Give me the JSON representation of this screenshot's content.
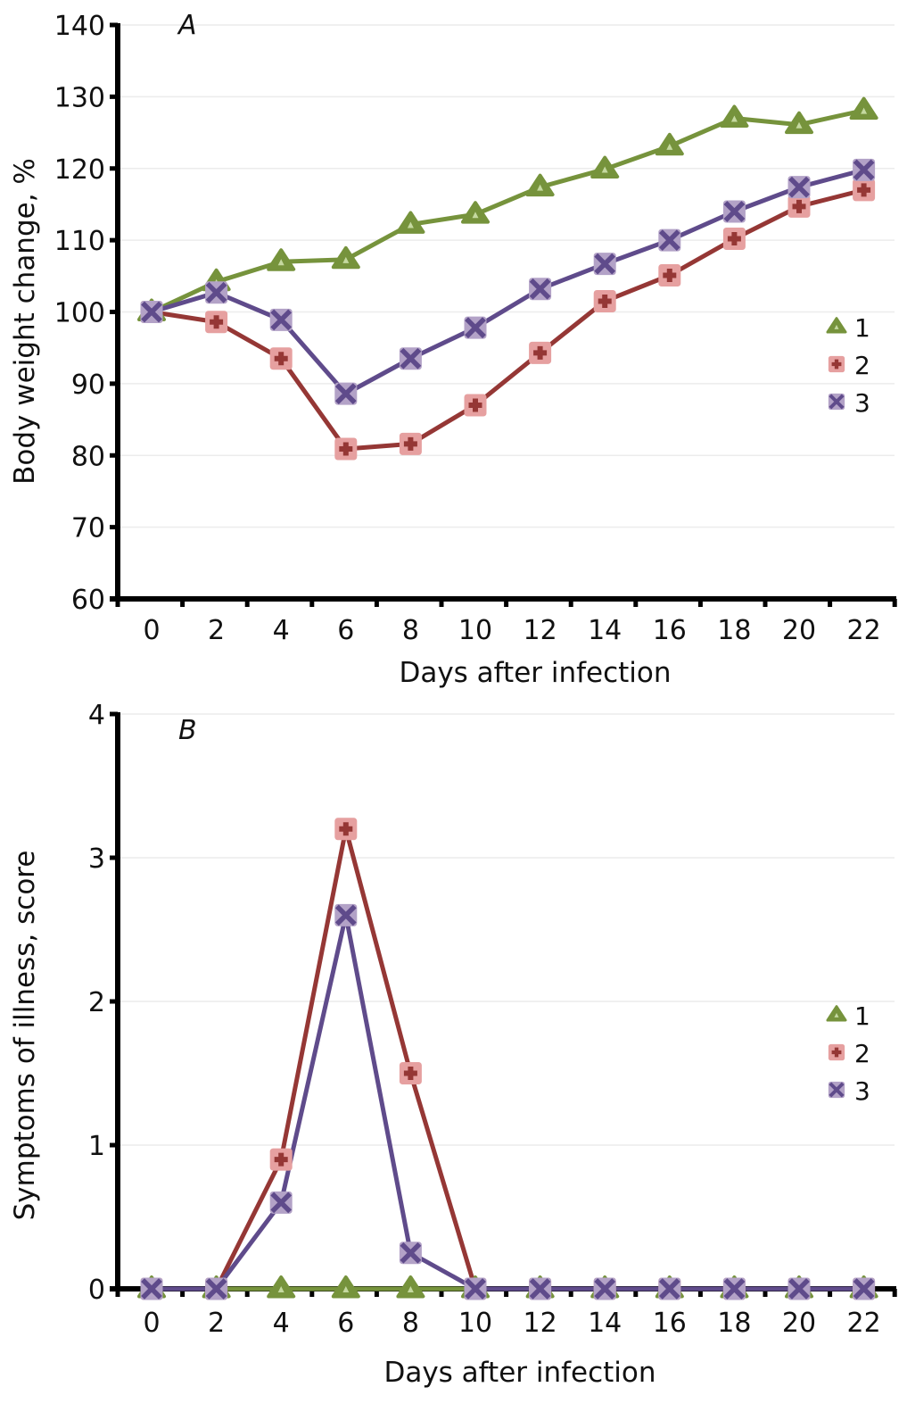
{
  "chart_data": [
    {
      "type": "line",
      "panel_label": "A",
      "title": "",
      "xlabel": "Days after infection",
      "ylabel": "Body weight change, %",
      "categories": [
        "0",
        "2",
        "4",
        "6",
        "8",
        "10",
        "12",
        "14",
        "16",
        "18",
        "20",
        "22"
      ],
      "x": [
        0,
        2,
        4,
        6,
        8,
        10,
        12,
        14,
        16,
        18,
        20,
        22
      ],
      "ylim": [
        60,
        140
      ],
      "yticks": [
        60,
        70,
        80,
        90,
        100,
        110,
        120,
        130,
        140
      ],
      "grid": true,
      "legend_position": "right",
      "series": [
        {
          "name": "1",
          "marker": "triangle",
          "color": "#76933c",
          "marker_fill": "#76933c",
          "values": [
            100,
            104.2,
            107,
            107.3,
            112.2,
            113.6,
            117.4,
            119.9,
            123.1,
            127,
            126.1,
            128.1
          ]
        },
        {
          "name": "2",
          "marker": "plus-square",
          "color": "#953735",
          "marker_fill": "#e6a0a0",
          "values": [
            100,
            98.6,
            93.5,
            80.9,
            81.6,
            87,
            94.3,
            101.5,
            105.1,
            110.2,
            114.7,
            117
          ]
        },
        {
          "name": "3",
          "marker": "x-square",
          "color": "#5f4b8b",
          "marker_fill": "#b3a2c7",
          "values": [
            100,
            102.7,
            98.9,
            88.6,
            93.5,
            97.8,
            103.2,
            106.7,
            110,
            114,
            117.4,
            119.8
          ]
        }
      ]
    },
    {
      "type": "line",
      "panel_label": "B",
      "title": "",
      "xlabel": "Days after infection",
      "ylabel": "Symptoms of illness, score",
      "categories": [
        "0",
        "2",
        "4",
        "6",
        "8",
        "10",
        "12",
        "14",
        "16",
        "18",
        "20",
        "22"
      ],
      "x": [
        0,
        2,
        4,
        6,
        8,
        10,
        12,
        14,
        16,
        18,
        20,
        22
      ],
      "ylim": [
        0,
        4
      ],
      "yticks": [
        0,
        1,
        2,
        3,
        4
      ],
      "grid": true,
      "legend_position": "right",
      "series": [
        {
          "name": "1",
          "marker": "triangle",
          "color": "#76933c",
          "marker_fill": "#76933c",
          "values": [
            0,
            0,
            0,
            0,
            0,
            0,
            0,
            0,
            0,
            0,
            0,
            0
          ]
        },
        {
          "name": "2",
          "marker": "plus-square",
          "color": "#953735",
          "marker_fill": "#e6a0a0",
          "values": [
            0,
            0,
            0.9,
            3.2,
            1.5,
            0,
            0,
            0,
            0,
            0,
            0,
            0
          ]
        },
        {
          "name": "3",
          "marker": "x-square",
          "color": "#5f4b8b",
          "marker_fill": "#b3a2c7",
          "values": [
            0,
            0,
            0.6,
            2.6,
            0.25,
            0,
            0,
            0,
            0,
            0,
            0,
            0
          ]
        }
      ]
    }
  ]
}
